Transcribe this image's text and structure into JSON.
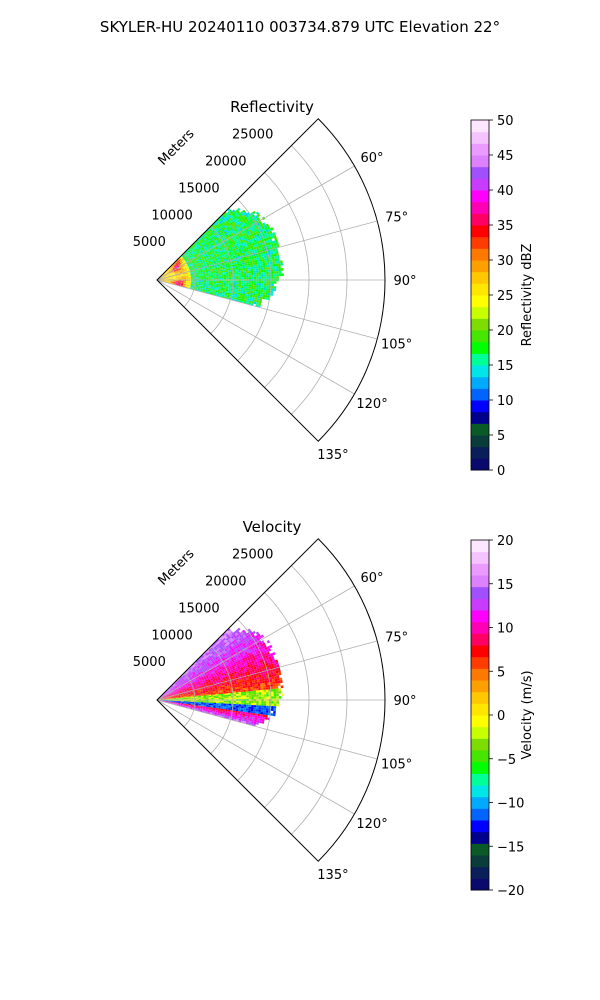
{
  "suptitle": "SKYLER-HU  20240110  003734.879 UTC Elevation 22°",
  "range_unit_label": "Meters",
  "chart_data": [
    {
      "type": "heatmap",
      "title": "Reflectivity",
      "projection": "polar sector (PPI)",
      "theta_range_deg": [
        45,
        135
      ],
      "theta_ticks": [
        "60°",
        "75°",
        "90°",
        "105°",
        "120°",
        "135°"
      ],
      "r_range": [
        0,
        30000
      ],
      "r_ticks": [
        "5000",
        "10000",
        "15000",
        "20000",
        "25000"
      ],
      "grid": true,
      "colorbar": {
        "label": "Reflectivity dBZ",
        "range": [
          0,
          50
        ],
        "ticks": [
          "0",
          "5",
          "10",
          "15",
          "20",
          "25",
          "30",
          "35",
          "40",
          "45",
          "50"
        ],
        "colors": [
          "#0a0a6e",
          "#0a1e5a",
          "#0a3c3c",
          "#0a5a28",
          "#00008c",
          "#0000ff",
          "#0064ff",
          "#00aaff",
          "#00e6e6",
          "#00ff96",
          "#00ff00",
          "#46e600",
          "#7ddc00",
          "#c8ff00",
          "#ffff00",
          "#ffe600",
          "#ffc800",
          "#ffa000",
          "#ff7800",
          "#ff3c00",
          "#ff0000",
          "#ff0064",
          "#ff00b4",
          "#ff00ff",
          "#c83cff",
          "#a050ff",
          "#dc82ff",
          "#eb9bff",
          "#f5c3ff",
          "#fde6ff"
        ]
      },
      "data_extent": {
        "theta_deg": [
          45,
          105
        ],
        "r_max_m": 16000
      },
      "values_summary": {
        "near_range_dbz": 28,
        "ring_max_dbz": 40,
        "outer_edge_dbz": 15
      }
    },
    {
      "type": "heatmap",
      "title": "Velocity",
      "projection": "polar sector (PPI)",
      "theta_range_deg": [
        45,
        135
      ],
      "theta_ticks": [
        "60°",
        "75°",
        "90°",
        "105°",
        "120°",
        "135°"
      ],
      "r_range": [
        0,
        30000
      ],
      "r_ticks": [
        "5000",
        "10000",
        "15000",
        "20000",
        "25000"
      ],
      "grid": true,
      "colorbar": {
        "label": "Velocity (m/s)",
        "range": [
          -20,
          20
        ],
        "ticks": [
          "−20",
          "−15",
          "−10",
          "−5",
          "0",
          "5",
          "10",
          "15",
          "20"
        ],
        "colors": [
          "#0a0a6e",
          "#0a1e5a",
          "#0a3c3c",
          "#0a5a28",
          "#00008c",
          "#0000ff",
          "#0064ff",
          "#00aaff",
          "#00e6e6",
          "#00ff96",
          "#00ff00",
          "#46e600",
          "#7ddc00",
          "#c8ff00",
          "#ffff00",
          "#ffe600",
          "#ffc800",
          "#ffa000",
          "#ff7800",
          "#ff3c00",
          "#ff0000",
          "#ff0064",
          "#ff00b4",
          "#ff00ff",
          "#c83cff",
          "#a050ff",
          "#dc82ff",
          "#eb9bff",
          "#f5c3ff",
          "#fde6ff"
        ]
      },
      "data_extent": {
        "theta_deg": [
          45,
          105
        ],
        "r_max_m": 16000
      },
      "values_summary": {
        "north_sector_ms": 10,
        "center_band_ms": -8,
        "south_sector_ms": 16
      }
    }
  ]
}
